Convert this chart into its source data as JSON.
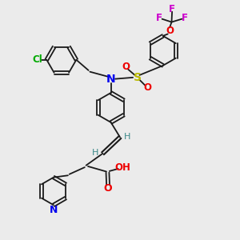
{
  "background_color": "#ebebeb",
  "bond_color": "#1a1a1a",
  "N_color": "#0000ee",
  "O_color": "#ee0000",
  "S_color": "#bbbb00",
  "Cl_color": "#00aa00",
  "F_color": "#cc00cc",
  "vinyl_H_color": "#3a8888",
  "fig_w": 3.0,
  "fig_h": 3.0,
  "dpi": 100,
  "xlim": [
    0,
    10
  ],
  "ylim": [
    0,
    10
  ]
}
